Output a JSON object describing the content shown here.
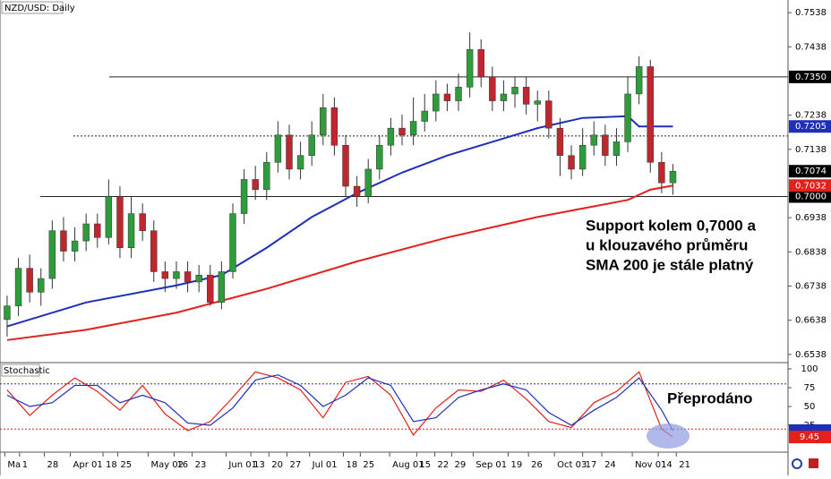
{
  "chart_data": [
    {
      "type": "candlestick",
      "title": "NZD/USD: Daily",
      "up_color": "#2e9c3a",
      "down_color": "#c0262d",
      "open": [
        0.664,
        0.668,
        0.679,
        0.672,
        0.676,
        0.69,
        0.684,
        0.687,
        0.692,
        0.688,
        0.7,
        0.685,
        0.695,
        0.69,
        0.678,
        0.676,
        0.678,
        0.675,
        0.677,
        0.669,
        0.678,
        0.695,
        0.705,
        0.702,
        0.71,
        0.718,
        0.708,
        0.712,
        0.718,
        0.726,
        0.715,
        0.703,
        0.7,
        0.708,
        0.715,
        0.72,
        0.718,
        0.722,
        0.725,
        0.73,
        0.728,
        0.732,
        0.743,
        0.735,
        0.728,
        0.73,
        0.732,
        0.727,
        0.728,
        0.72,
        0.712,
        0.708,
        0.715,
        0.718,
        0.712,
        0.716,
        0.73,
        0.738,
        0.71,
        0.704
      ],
      "high": [
        0.671,
        0.682,
        0.683,
        0.679,
        0.693,
        0.694,
        0.691,
        0.695,
        0.695,
        0.705,
        0.703,
        0.7,
        0.698,
        0.693,
        0.681,
        0.681,
        0.681,
        0.68,
        0.68,
        0.681,
        0.698,
        0.708,
        0.709,
        0.713,
        0.722,
        0.721,
        0.716,
        0.722,
        0.73,
        0.729,
        0.718,
        0.706,
        0.711,
        0.718,
        0.723,
        0.724,
        0.729,
        0.73,
        0.734,
        0.733,
        0.736,
        0.748,
        0.746,
        0.738,
        0.734,
        0.735,
        0.735,
        0.731,
        0.731,
        0.723,
        0.715,
        0.72,
        0.722,
        0.721,
        0.72,
        0.735,
        0.741,
        0.74,
        0.713,
        0.7095
      ],
      "low": [
        0.659,
        0.665,
        0.669,
        0.668,
        0.673,
        0.681,
        0.681,
        0.684,
        0.685,
        0.686,
        0.682,
        0.682,
        0.687,
        0.675,
        0.672,
        0.673,
        0.672,
        0.672,
        0.668,
        0.667,
        0.676,
        0.692,
        0.699,
        0.699,
        0.707,
        0.705,
        0.705,
        0.709,
        0.715,
        0.712,
        0.7,
        0.697,
        0.698,
        0.705,
        0.712,
        0.715,
        0.715,
        0.719,
        0.722,
        0.725,
        0.725,
        0.729,
        0.732,
        0.725,
        0.725,
        0.726,
        0.724,
        0.722,
        0.717,
        0.706,
        0.705,
        0.706,
        0.712,
        0.709,
        0.709,
        0.713,
        0.727,
        0.707,
        0.701,
        0.7005
      ],
      "close": [
        0.668,
        0.679,
        0.672,
        0.676,
        0.69,
        0.684,
        0.687,
        0.692,
        0.688,
        0.7,
        0.685,
        0.695,
        0.69,
        0.678,
        0.676,
        0.678,
        0.675,
        0.677,
        0.669,
        0.678,
        0.695,
        0.705,
        0.702,
        0.71,
        0.718,
        0.708,
        0.712,
        0.718,
        0.726,
        0.715,
        0.703,
        0.7,
        0.708,
        0.715,
        0.72,
        0.718,
        0.722,
        0.725,
        0.73,
        0.728,
        0.732,
        0.743,
        0.735,
        0.728,
        0.73,
        0.732,
        0.727,
        0.728,
        0.72,
        0.712,
        0.708,
        0.715,
        0.718,
        0.712,
        0.716,
        0.73,
        0.738,
        0.71,
        0.704,
        0.7074
      ],
      "overlays": [
        {
          "color": "#1f2fb8",
          "x": [
            0,
            7,
            15,
            19,
            23,
            27,
            31,
            35,
            39,
            43,
            47,
            51,
            55,
            56,
            59
          ],
          "values": [
            0.662,
            0.669,
            0.674,
            0.677,
            0.685,
            0.694,
            0.701,
            0.707,
            0.712,
            0.716,
            0.72,
            0.723,
            0.7235,
            0.7205,
            0.7205
          ]
        },
        {
          "color": "#e3201b",
          "x": [
            0,
            7,
            15,
            23,
            31,
            39,
            47,
            55,
            57,
            59
          ],
          "values": [
            0.658,
            0.661,
            0.666,
            0.673,
            0.681,
            0.688,
            0.694,
            0.699,
            0.702,
            0.7032
          ]
        }
      ],
      "levels": [
        {
          "value": 0.735,
          "label": "0.7350",
          "start": 9.05,
          "style": "solid"
        },
        {
          "value": 0.7177,
          "start": 5.88,
          "style": "dotted"
        },
        {
          "value": 0.7,
          "label": "0.7000",
          "start": 2.94,
          "style": "solid"
        }
      ],
      "xlim": [
        -0.63,
        69.2
      ],
      "ylim": [
        0.6514,
        0.7575
      ],
      "yticks": [
        0.7538,
        0.7438,
        0.7238,
        0.7138,
        0.6938,
        0.6838,
        0.6738,
        0.6638,
        0.6538
      ],
      "annotations": [
        "Support kolem 0,7000 a",
        "u klouzavého průměru",
        "SMA 200 je stále platný"
      ]
    },
    {
      "type": "line",
      "title": "Stochastic",
      "series": [
        {
          "color": "#e3201b",
          "x": [
            0,
            2,
            4,
            6,
            8,
            10,
            12,
            14,
            16,
            18,
            20,
            22,
            24,
            26,
            28,
            30,
            32,
            34,
            36,
            38,
            40,
            42,
            44,
            46,
            48,
            50,
            52,
            54,
            56,
            58,
            59
          ],
          "values": [
            72,
            38,
            65,
            88,
            70,
            45,
            78,
            40,
            18,
            30,
            62,
            96,
            88,
            72,
            35,
            82,
            90,
            65,
            12,
            48,
            72,
            70,
            85,
            60,
            30,
            22,
            55,
            70,
            96,
            20,
            9.45
          ]
        },
        {
          "color": "#1f2fb8",
          "x": [
            0,
            2,
            4,
            6,
            8,
            10,
            12,
            14,
            16,
            18,
            20,
            22,
            24,
            26,
            28,
            30,
            32,
            34,
            36,
            38,
            40,
            42,
            44,
            46,
            48,
            50,
            52,
            54,
            56,
            58,
            59
          ],
          "values": [
            65,
            50,
            55,
            78,
            78,
            55,
            65,
            55,
            28,
            25,
            48,
            85,
            92,
            78,
            50,
            65,
            88,
            78,
            30,
            35,
            62,
            72,
            80,
            72,
            42,
            25,
            45,
            62,
            88,
            45,
            18
          ]
        }
      ],
      "levels": [
        {
          "value": 80,
          "color": "#1f2fb8"
        },
        {
          "value": 20,
          "color": "#e3201b"
        }
      ],
      "xlim": [
        -0.63,
        69.2
      ],
      "ylim": [
        -10.7,
        108.3
      ],
      "yticks": [
        100,
        75,
        50,
        25
      ],
      "xticks": [
        {
          "value": -0.2,
          "label": "Ma"
        },
        {
          "value": 1.1,
          "label": "1"
        },
        {
          "value": 3.3,
          "label": "28"
        },
        {
          "value": 5.6,
          "label": "Apr 01"
        },
        {
          "value": 8.5,
          "label": "18"
        },
        {
          "value": 9.8,
          "label": "25"
        },
        {
          "value": 12.5,
          "label": "May 02"
        },
        {
          "value": 14.8,
          "label": "16"
        },
        {
          "value": 16.4,
          "label": "23"
        },
        {
          "value": 19.4,
          "label": "Jun 01"
        },
        {
          "value": 21.6,
          "label": "13"
        },
        {
          "value": 23.2,
          "label": "20"
        },
        {
          "value": 24.8,
          "label": "27"
        },
        {
          "value": 26.8,
          "label": "Jul 01"
        },
        {
          "value": 29.8,
          "label": "18"
        },
        {
          "value": 31.3,
          "label": "25"
        },
        {
          "value": 33.9,
          "label": "Aug 01"
        },
        {
          "value": 36.3,
          "label": "15"
        },
        {
          "value": 37.9,
          "label": "22"
        },
        {
          "value": 39.4,
          "label": "29"
        },
        {
          "value": 41.3,
          "label": "Sep 01"
        },
        {
          "value": 44.4,
          "label": "19"
        },
        {
          "value": 46.2,
          "label": "26"
        },
        {
          "value": 48.5,
          "label": "Oct 03"
        },
        {
          "value": 51.0,
          "label": "17"
        },
        {
          "value": 52.7,
          "label": "24"
        },
        {
          "value": 55.4,
          "label": "Nov 01"
        },
        {
          "value": 57.7,
          "label": "14"
        },
        {
          "value": 59.3,
          "label": "21"
        }
      ],
      "annotation": "Přeprodáno"
    }
  ]
}
